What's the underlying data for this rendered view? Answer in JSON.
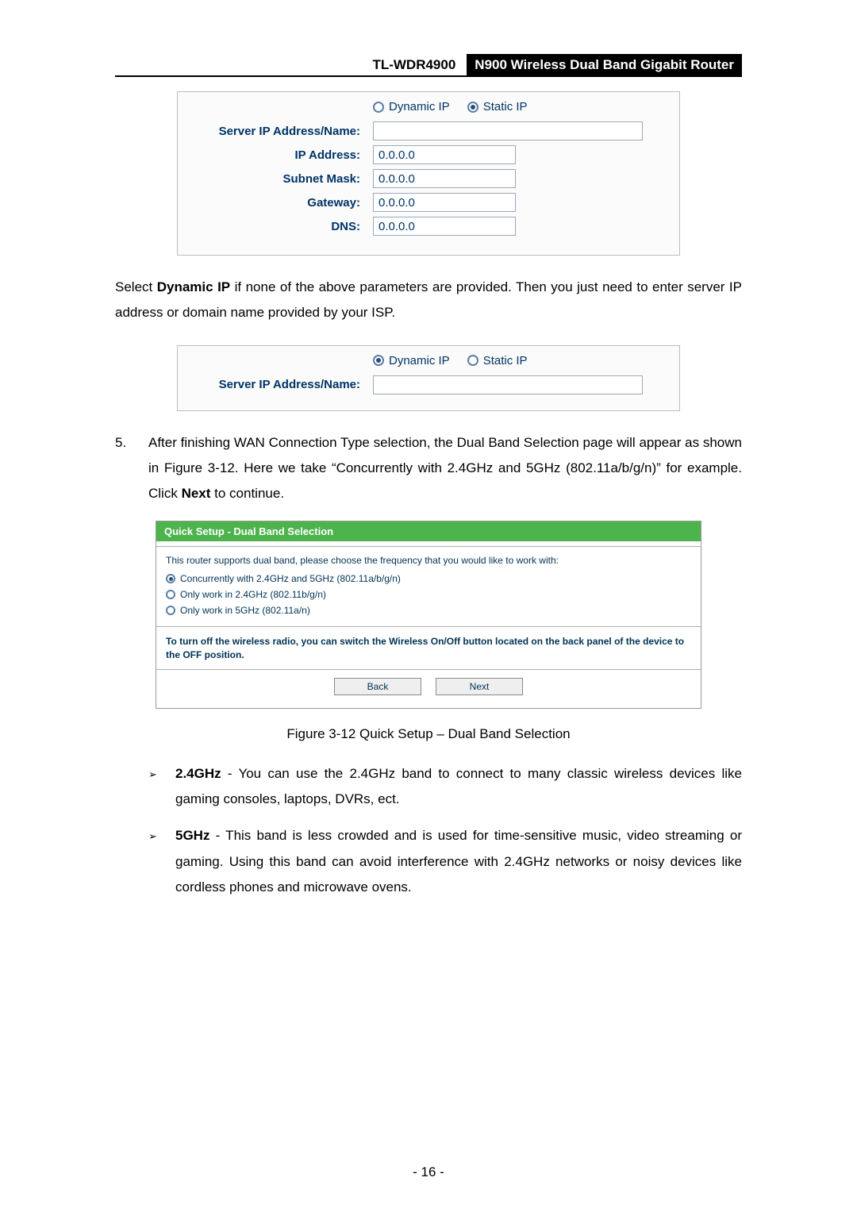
{
  "header": {
    "model": "TL-WDR4900",
    "title": "N900 Wireless Dual Band Gigabit Router"
  },
  "box1": {
    "dynamic_label": "Dynamic IP",
    "static_label": "Static IP",
    "selected": "static",
    "label_server": "Server IP Address/Name:",
    "value_server": "",
    "label_ip": "IP Address:",
    "value_ip": "0.0.0.0",
    "label_mask": "Subnet Mask:",
    "value_mask": "0.0.0.0",
    "label_gateway": "Gateway:",
    "value_gateway": "0.0.0.0",
    "label_dns": "DNS:",
    "value_dns": "0.0.0.0",
    "field_colors": {
      "label": "#003366",
      "border": "#9aa9b8",
      "box_border": "#bdbdbd",
      "bg": "#fbfbfb"
    }
  },
  "para1_prefix": "Select ",
  "para1_bold": "Dynamic IP",
  "para1_suffix": " if none of the above parameters are provided. Then you just need to enter server IP address or domain name provided by your ISP.",
  "box2": {
    "dynamic_label": "Dynamic IP",
    "static_label": "Static IP",
    "selected": "dynamic",
    "label_server": "Server IP Address/Name:",
    "value_server": ""
  },
  "step5_num": "5.",
  "step5_part1": "After finishing WAN Connection Type selection, the Dual Band Selection page will appear as shown in Figure 3-12. Here we take “Concurrently with 2.4GHz and 5GHz (802.11a/b/g/n)” for example. Click ",
  "step5_bold": "Next",
  "step5_part2": " to continue.",
  "qs": {
    "title": "Quick Setup - Dual Band Selection",
    "intro": "This router supports dual band, please choose the frequency that you would like to work with:",
    "opt1": "Concurrently with 2.4GHz and 5GHz (802.11a/b/g/n)",
    "opt2": "Only work in 2.4GHz (802.11b/g/n)",
    "opt3": "Only work in 5GHz (802.11a/n)",
    "selected_index": 0,
    "note": "To turn off the wireless radio, you can switch the Wireless On/Off button located on the back panel of the device to the OFF position.",
    "back": "Back",
    "next": "Next",
    "colors": {
      "title_bg": "#4db34d",
      "title_fg": "#ffffff",
      "text": "#003355",
      "border": "#999999"
    }
  },
  "fig_caption": "Figure 3-12 Quick Setup – Dual Band Selection",
  "bullets": [
    {
      "mark": "➢",
      "bold": "2.4GHz",
      "text": " - You can use the 2.4GHz band to connect to many classic wireless devices like gaming consoles, laptops, DVRs, ect."
    },
    {
      "mark": "➢",
      "bold": "5GHz",
      "text": " - This band is less crowded and is used for time-sensitive music, video streaming or gaming. Using this band can avoid interference with 2.4GHz networks or noisy devices like cordless phones and microwave ovens."
    }
  ],
  "page_number": "- 16 -"
}
